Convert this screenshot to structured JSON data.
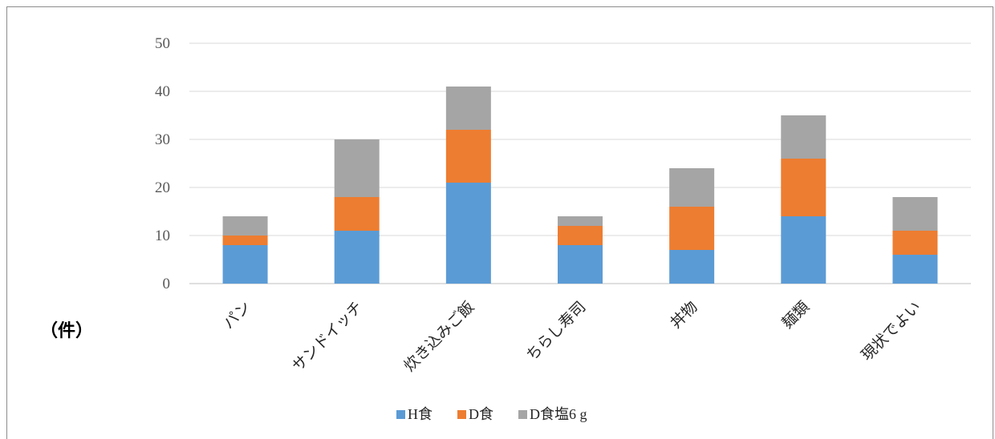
{
  "chart_data": {
    "type": "bar",
    "stacked": true,
    "unit_label": "（件）",
    "categories": [
      "パン",
      "サンドイッチ",
      "炊き込みご飯",
      "ちらし寿司",
      "丼物",
      "麺類",
      "現状でよい"
    ],
    "series": [
      {
        "name": "H食",
        "color": "#5b9bd5",
        "values": [
          8,
          11,
          21,
          8,
          7,
          14,
          6
        ]
      },
      {
        "name": "D食",
        "color": "#ed7d31",
        "values": [
          2,
          7,
          11,
          4,
          9,
          12,
          5
        ]
      },
      {
        "name": "D食塩6 g",
        "color": "#a5a5a5",
        "values": [
          4,
          12,
          9,
          2,
          8,
          9,
          7
        ]
      }
    ],
    "yticks": [
      0,
      10,
      20,
      30,
      40,
      50
    ],
    "ylim": [
      0,
      50
    ],
    "grid": true,
    "legend_position": "bottom"
  }
}
